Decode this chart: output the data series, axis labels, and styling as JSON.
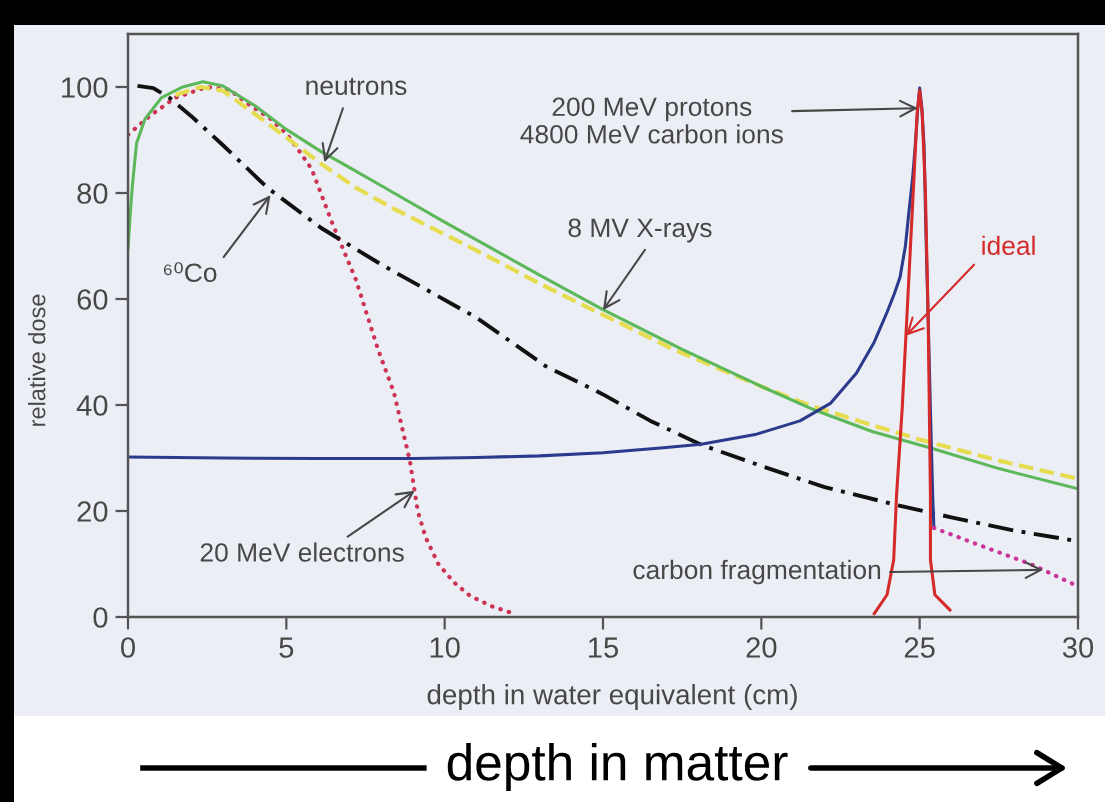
{
  "chart_data": {
    "type": "line",
    "xlabel": "depth in water equivalent (cm)",
    "ylabel": "relative dose",
    "xlim": [
      0,
      30
    ],
    "ylim": [
      0,
      110
    ],
    "xticks": [
      0,
      5,
      10,
      15,
      20,
      25,
      30
    ],
    "yticks": [
      0,
      20,
      40,
      60,
      80,
      100
    ],
    "series": [
      {
        "color": "#cc3355",
        "line_style": "dotted",
        "x": [
          0,
          0.7,
          1.5,
          2.5,
          3.2,
          3.85,
          4.5,
          5,
          5.4,
          5.8,
          6.45,
          7.2,
          7.9,
          8.4,
          8.9,
          9.15,
          9.4,
          9.8,
          10.3,
          10.8,
          11.5,
          12.2
        ],
        "values": [
          91,
          94.6,
          98,
          100,
          99.5,
          96.6,
          94,
          91.2,
          88,
          84.5,
          74.3,
          63.6,
          50.4,
          42.3,
          29.5,
          20,
          15,
          10,
          6.5,
          4,
          2,
          0.6
        ]
      },
      {
        "color": "#111111",
        "line_style": "dashdot",
        "x": [
          0.3,
          0.8,
          1.3,
          2,
          3,
          4.4,
          6.1,
          8,
          9.5,
          11,
          13.2,
          15,
          16.5,
          18.1,
          20,
          22,
          24.3,
          26,
          28,
          30
        ],
        "values": [
          100.2,
          99.8,
          98,
          94.5,
          89,
          81,
          73.4,
          66.5,
          61.5,
          56.5,
          47.3,
          42,
          37,
          32.5,
          28.5,
          24.5,
          21.1,
          18.8,
          16.3,
          14.3
        ]
      },
      {
        "color": "#e6dc50",
        "line_style": "dashed",
        "x": [
          1.5,
          2.3,
          3,
          4.1,
          5,
          6.1,
          7.2,
          8.4,
          10.6,
          13.3,
          15,
          17.3,
          20,
          21.5,
          23.5,
          25,
          27.5,
          30
        ],
        "values": [
          98.5,
          100,
          99.3,
          94.5,
          90.5,
          85.5,
          81,
          77,
          70.4,
          62,
          57,
          50.3,
          43.5,
          40,
          36.2,
          33.5,
          29.5,
          26.1
        ]
      },
      {
        "color": "#5cb85a",
        "line_style": "solid",
        "x": [
          0,
          0.07,
          0.14,
          0.27,
          0.54,
          1.06,
          1.72,
          2.37,
          3,
          4,
          5,
          6.1,
          7,
          8.4,
          10,
          11.5,
          13,
          15,
          17.5,
          20,
          21.7,
          23.5,
          25.4,
          27.5,
          30
        ],
        "values": [
          69.5,
          76,
          81.5,
          89.4,
          94,
          98,
          100,
          101,
          100.2,
          96.5,
          92,
          87.8,
          84.8,
          80,
          74.5,
          69.5,
          64.5,
          58,
          50.5,
          43.5,
          39,
          35,
          31.8,
          28,
          24.2
        ]
      },
      {
        "color": "#2b3a8c",
        "line_style": "solid",
        "x": [
          0,
          3,
          6,
          9,
          11,
          13,
          15,
          17,
          18.1,
          19.85,
          21.22,
          22.18,
          23,
          23.56,
          23.97,
          24.2,
          24.38,
          24.55,
          24.66,
          24.78,
          24.86,
          24.94,
          25,
          25.07,
          25.14,
          25.2,
          25.27,
          25.34,
          25.41,
          25.45
        ],
        "values": [
          30.2,
          30,
          29.9,
          29.9,
          30.1,
          30.4,
          31,
          32,
          32.6,
          34.5,
          37,
          40.3,
          46,
          51.8,
          57.5,
          61,
          64.1,
          70,
          76.4,
          83,
          88.9,
          96,
          99.8,
          96,
          88.7,
          72,
          55.9,
          39,
          23,
          16.8
        ]
      },
      {
        "color": "#d42a2a",
        "line_style": "solid",
        "x": [
          23.56,
          23.97,
          24.18,
          24.27,
          24.45,
          24.59,
          24.8,
          24.92,
          25,
          25.08,
          25.18,
          25.27,
          25.34,
          25.34,
          25.48,
          25.96
        ],
        "values": [
          0.6,
          4.2,
          10.8,
          23,
          39.5,
          55.9,
          80.5,
          95,
          99.4,
          95,
          80.5,
          55.9,
          23,
          10.8,
          4.2,
          1.3
        ]
      },
      {
        "color": "#cc3399",
        "line_style": "dotted",
        "x": [
          25.45,
          27,
          28.5,
          30
        ],
        "values": [
          16.8,
          13.3,
          10,
          5.8
        ]
      }
    ],
    "annotations": [
      {
        "text": "neutrons",
        "x": 6.2,
        "y": 85.8
      },
      {
        "text": "⁶⁰Co",
        "x": 4.5,
        "y": 79.6
      },
      {
        "text": "8 MV X-rays",
        "x": 15.0,
        "y": 57.9
      },
      {
        "text": "200 MeV protons\n4800 MeV carbon ions",
        "x": 24.94,
        "y": 96
      },
      {
        "text": "ideal",
        "x": 24.57,
        "y": 53.1
      },
      {
        "text": "20 MeV electrons",
        "x": 9.05,
        "y": 23.8
      },
      {
        "text": "carbon fragmentation",
        "x": 28.9,
        "y": 8.9
      },
      "depth in matter"
    ]
  }
}
